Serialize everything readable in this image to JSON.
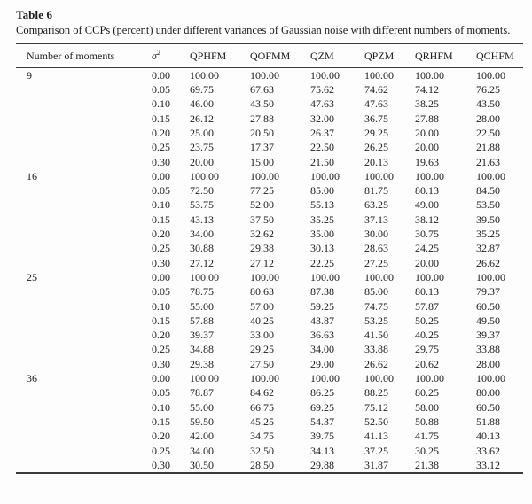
{
  "caption": {
    "label": "Table 6",
    "text": "Comparison of CCPs (percent) under different variances of Gaussian noise with different numbers of moments."
  },
  "table": {
    "header": {
      "moments": "Number of moments",
      "sigma": "σ",
      "sigma_sup": "2",
      "methods": [
        "QPHFM",
        "QOFMM",
        "QZM",
        "QPZM",
        "QRHFM",
        "QCHFM"
      ]
    },
    "groups": [
      {
        "moments": "9",
        "rows": [
          {
            "sigma": "0.00",
            "values": [
              "100.00",
              "100.00",
              "100.00",
              "100.00",
              "100.00",
              "100.00"
            ]
          },
          {
            "sigma": "0.05",
            "values": [
              "69.75",
              "67.63",
              "75.62",
              "74.62",
              "74.12",
              "76.25"
            ]
          },
          {
            "sigma": "0.10",
            "values": [
              "46.00",
              "43.50",
              "47.63",
              "47.63",
              "38.25",
              "43.50"
            ]
          },
          {
            "sigma": "0.15",
            "values": [
              "26.12",
              "27.88",
              "32.00",
              "36.75",
              "27.88",
              "28.00"
            ]
          },
          {
            "sigma": "0.20",
            "values": [
              "25.00",
              "20.50",
              "26.37",
              "29.25",
              "20.00",
              "22.50"
            ]
          },
          {
            "sigma": "0.25",
            "values": [
              "23.75",
              "17.37",
              "22.50",
              "26.25",
              "20.00",
              "21.88"
            ]
          },
          {
            "sigma": "0.30",
            "values": [
              "20.00",
              "15.00",
              "21.50",
              "20.13",
              "19.63",
              "21.63"
            ]
          }
        ]
      },
      {
        "moments": "16",
        "rows": [
          {
            "sigma": "0.00",
            "values": [
              "100.00",
              "100.00",
              "100.00",
              "100.00",
              "100.00",
              "100.00"
            ]
          },
          {
            "sigma": "0.05",
            "values": [
              "72.50",
              "77.25",
              "85.00",
              "81.75",
              "80.13",
              "84.50"
            ]
          },
          {
            "sigma": "0.10",
            "values": [
              "53.75",
              "52.00",
              "55.13",
              "63.25",
              "49.00",
              "53.50"
            ]
          },
          {
            "sigma": "0.15",
            "values": [
              "43.13",
              "37.50",
              "35.25",
              "37.13",
              "38.12",
              "39.50"
            ]
          },
          {
            "sigma": "0.20",
            "values": [
              "34.00",
              "32.62",
              "35.00",
              "30.00",
              "30.75",
              "35.25"
            ]
          },
          {
            "sigma": "0.25",
            "values": [
              "30.88",
              "29.38",
              "30.13",
              "28.63",
              "24.25",
              "32.87"
            ]
          },
          {
            "sigma": "0.30",
            "values": [
              "27.12",
              "27.12",
              "22.25",
              "27.25",
              "20.00",
              "26.62"
            ]
          }
        ]
      },
      {
        "moments": "25",
        "rows": [
          {
            "sigma": "0.00",
            "values": [
              "100.00",
              "100.00",
              "100.00",
              "100.00",
              "100.00",
              "100.00"
            ]
          },
          {
            "sigma": "0.05",
            "values": [
              "78.75",
              "80.63",
              "87.38",
              "85.00",
              "80.13",
              "79.37"
            ]
          },
          {
            "sigma": "0.10",
            "values": [
              "55.00",
              "57.00",
              "59.25",
              "74.75",
              "57.87",
              "60.50"
            ]
          },
          {
            "sigma": "0.15",
            "values": [
              "57.88",
              "40.25",
              "43.87",
              "53.25",
              "50.25",
              "49.50"
            ]
          },
          {
            "sigma": "0.20",
            "values": [
              "39.37",
              "33.00",
              "36.63",
              "41.50",
              "40.25",
              "39.37"
            ]
          },
          {
            "sigma": "0.25",
            "values": [
              "34.88",
              "29.25",
              "34.00",
              "33.88",
              "29.75",
              "33.88"
            ]
          },
          {
            "sigma": "0.30",
            "values": [
              "29.38",
              "27.50",
              "29.00",
              "26.62",
              "20.62",
              "28.00"
            ]
          }
        ]
      },
      {
        "moments": "36",
        "rows": [
          {
            "sigma": "0.00",
            "values": [
              "100.00",
              "100.00",
              "100.00",
              "100.00",
              "100.00",
              "100.00"
            ]
          },
          {
            "sigma": "0.05",
            "values": [
              "78.87",
              "84.62",
              "86.25",
              "88.25",
              "80.25",
              "80.00"
            ]
          },
          {
            "sigma": "0.10",
            "values": [
              "55.00",
              "66.75",
              "69.25",
              "75.12",
              "58.00",
              "60.50"
            ]
          },
          {
            "sigma": "0.15",
            "values": [
              "59.50",
              "45.25",
              "54.37",
              "52.50",
              "50.88",
              "51.88"
            ]
          },
          {
            "sigma": "0.20",
            "values": [
              "42.00",
              "34.75",
              "39.75",
              "41.13",
              "41.75",
              "40.13"
            ]
          },
          {
            "sigma": "0.25",
            "values": [
              "34.00",
              "32.50",
              "34.13",
              "37.25",
              "30.25",
              "33.62"
            ]
          },
          {
            "sigma": "0.30",
            "values": [
              "30.50",
              "28.50",
              "29.88",
              "31.87",
              "21.38",
              "33.12"
            ]
          }
        ]
      }
    ]
  }
}
